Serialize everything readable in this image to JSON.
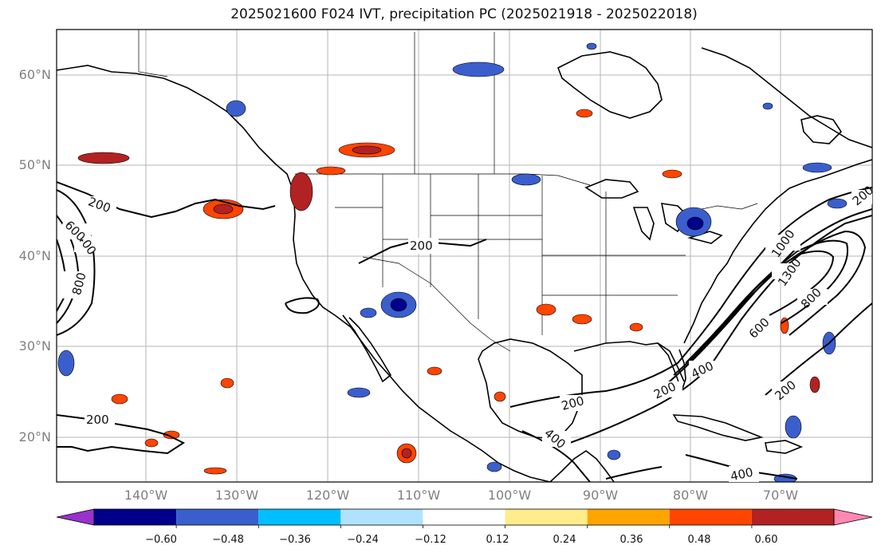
{
  "title": "2025021600 F024 IVT, precipitation PC (2025021918 - 2025022018)",
  "map": {
    "lat_labels": [
      "60°N",
      "50°N",
      "40°N",
      "30°N",
      "20°N"
    ],
    "lon_labels": [
      "140°W",
      "130°W",
      "120°W",
      "110°W",
      "100°W",
      "90°W",
      "80°W",
      "70°W"
    ],
    "contour_labels": [
      "200",
      "200",
      "200",
      "200",
      "200",
      "200",
      "200",
      "400",
      "400",
      "400",
      "400",
      "600",
      "600",
      "800",
      "800",
      "1000",
      "1300"
    ]
  },
  "colorbar": {
    "tick_labels": [
      "−0.60",
      "−0.48",
      "−0.36",
      "−0.24",
      "−0.12",
      "0.12",
      "0.24",
      "0.36",
      "0.48",
      "0.60"
    ],
    "colors": [
      "#9932cc",
      "#00008b",
      "#3a5fcd",
      "#00bfff",
      "#b0e2ff",
      "#ffffff",
      "#ffec8b",
      "#ffa500",
      "#ff4500",
      "#b22222",
      "#ff88b0"
    ]
  }
}
